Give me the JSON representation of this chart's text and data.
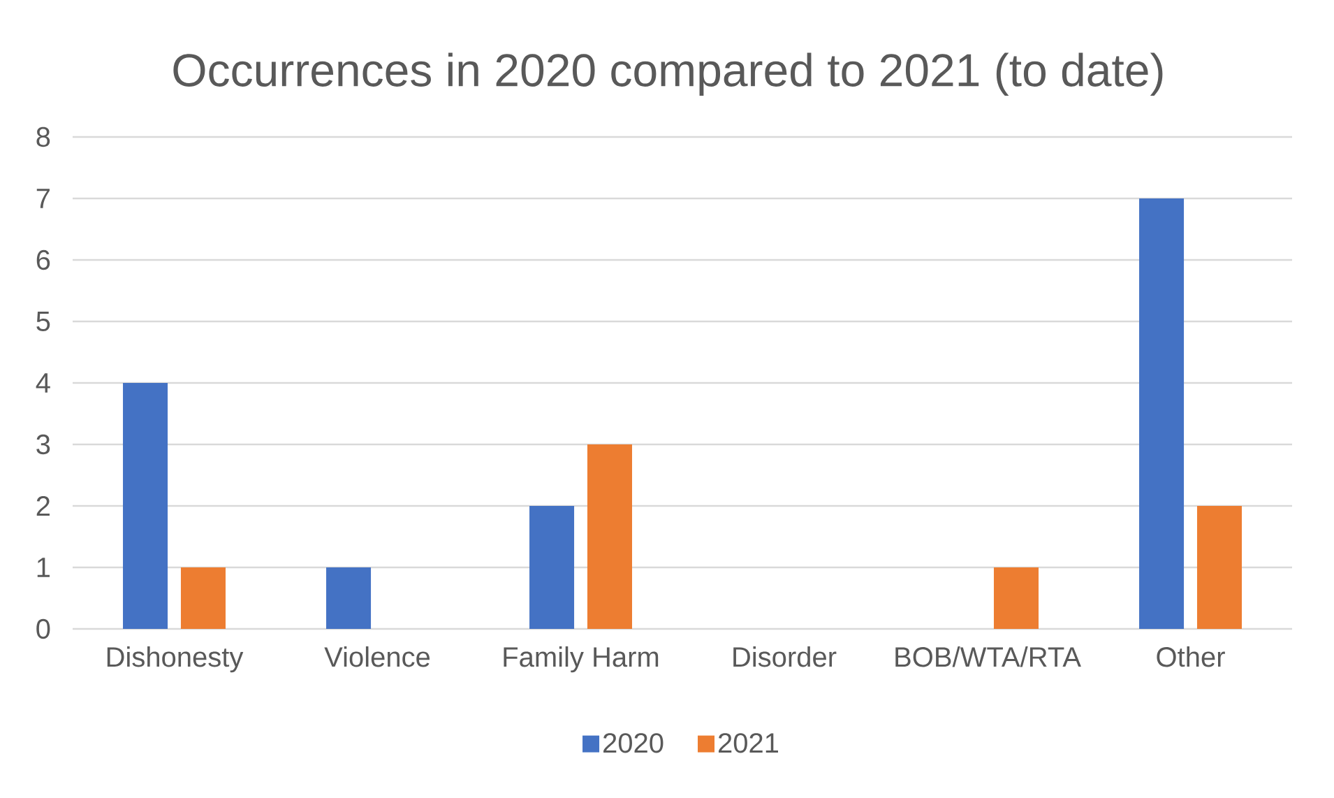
{
  "chart_data": {
    "type": "bar",
    "title": "Occurrences in 2020 compared to 2021 (to date)",
    "categories": [
      "Dishonesty",
      "Violence",
      "Family Harm",
      "Disorder",
      "BOB/WTA/RTA",
      "Other"
    ],
    "series": [
      {
        "name": "2020",
        "color": "#4472c4",
        "values": [
          4,
          1,
          2,
          null,
          null,
          7
        ]
      },
      {
        "name": "2021",
        "color": "#ed7d31",
        "values": [
          1,
          null,
          3,
          null,
          1,
          2
        ]
      }
    ],
    "ylim": [
      0,
      8
    ],
    "yticks": [
      0,
      1,
      2,
      3,
      4,
      5,
      6,
      7,
      8
    ],
    "grid": "y",
    "legend": "bottom"
  }
}
